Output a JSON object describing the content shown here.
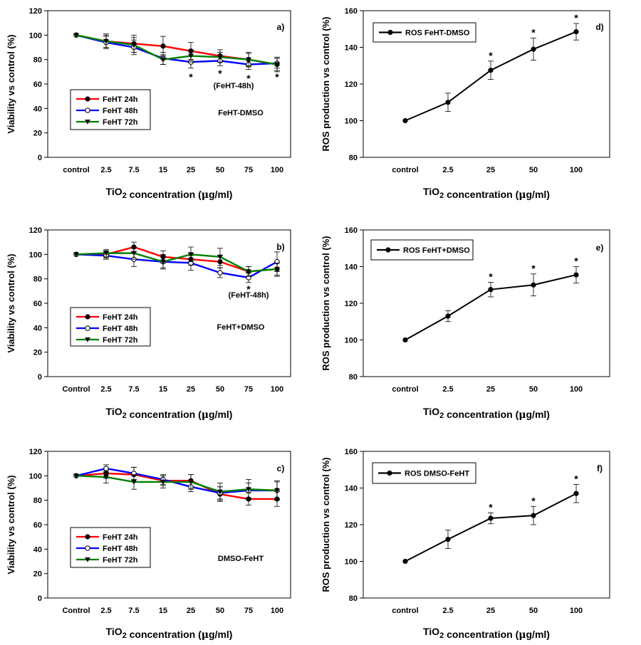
{
  "chart_data": [
    {
      "panel": "a)",
      "type": "line",
      "ylabel": "Viability vs control (%)",
      "xlabel": "TiO2 concentration (μg/ml)",
      "ylim": [
        0,
        120
      ],
      "yticks": [
        0,
        20,
        40,
        60,
        80,
        100,
        120
      ],
      "categories": [
        "control",
        "2.5",
        "7.5",
        "15",
        "25",
        "50",
        "75",
        "100"
      ],
      "annotation": "FeHT-DMSO",
      "note": "(FeHT-48h)",
      "series": [
        {
          "name": "FeHT 24h",
          "color": "#ff0000",
          "marker": "filled-circle",
          "values": [
            100,
            95,
            93,
            91,
            87,
            83,
            80,
            76
          ],
          "errors": [
            0,
            6,
            7,
            8,
            7,
            5,
            6,
            6
          ]
        },
        {
          "name": "FeHT 48h",
          "color": "#0000ff",
          "marker": "open-circle",
          "values": [
            100,
            94,
            90,
            81,
            78,
            79,
            76,
            77
          ],
          "errors": [
            0,
            5,
            6,
            5,
            5,
            4,
            4,
            4
          ]
        },
        {
          "name": "FeHT 72h",
          "color": "#008000",
          "marker": "down-triangle",
          "values": [
            100,
            95,
            92,
            80,
            83,
            82,
            80,
            76
          ],
          "errors": [
            0,
            5,
            6,
            4,
            5,
            4,
            5,
            5
          ]
        }
      ],
      "stars": [
        {
          "category": "25",
          "value": 78
        },
        {
          "category": "50",
          "value": 79
        },
        {
          "category": "75",
          "value": 76
        },
        {
          "category": "100",
          "value": 77
        }
      ]
    },
    {
      "panel": "b)",
      "type": "line",
      "ylabel": "Viability vs control (%)",
      "xlabel": "TiO2 concentration (μg/ml)",
      "ylim": [
        0,
        120
      ],
      "yticks": [
        0,
        20,
        40,
        60,
        80,
        100,
        120
      ],
      "categories": [
        "Control",
        "2.5",
        "7.5",
        "15",
        "25",
        "50",
        "75",
        "100"
      ],
      "annotation": "FeHT+DMSO",
      "note": "(FeHT-48h)",
      "series": [
        {
          "name": "FeHT 24h",
          "color": "#ff0000",
          "marker": "filled-circle",
          "values": [
            100,
            100,
            106,
            98,
            96,
            94,
            86,
            88
          ],
          "errors": [
            0,
            3,
            4,
            5,
            5,
            5,
            4,
            6
          ]
        },
        {
          "name": "FeHT 48h",
          "color": "#0000ff",
          "marker": "open-circle",
          "values": [
            100,
            99,
            96,
            94,
            93,
            85,
            81,
            94
          ],
          "errors": [
            0,
            3,
            6,
            5,
            6,
            4,
            4,
            8
          ]
        },
        {
          "name": "FeHT 72h",
          "color": "#008000",
          "marker": "down-triangle",
          "values": [
            100,
            101,
            101,
            94,
            100,
            98,
            86,
            88
          ],
          "errors": [
            0,
            3,
            5,
            6,
            6,
            7,
            4,
            5
          ]
        }
      ],
      "stars": [
        {
          "category": "75",
          "value": 81
        }
      ]
    },
    {
      "panel": "c)",
      "type": "line",
      "ylabel": "Viability vs control (%)",
      "xlabel": "TiO2 concentration (μg/ml)",
      "ylim": [
        0,
        120
      ],
      "yticks": [
        0,
        20,
        40,
        60,
        80,
        100,
        120
      ],
      "categories": [
        "Control",
        "2.5",
        "7.5",
        "15",
        "25",
        "50",
        "75",
        "100"
      ],
      "annotation": "DMSO-FeHT",
      "series": [
        {
          "name": "FeHT 24h",
          "color": "#ff0000",
          "marker": "filled-circle",
          "values": [
            100,
            102,
            101,
            96,
            96,
            85,
            81,
            81
          ],
          "errors": [
            0,
            4,
            6,
            4,
            5,
            6,
            5,
            6
          ]
        },
        {
          "name": "FeHT 48h",
          "color": "#0000ff",
          "marker": "open-circle",
          "values": [
            100,
            106,
            102,
            97,
            91,
            86,
            88,
            88
          ],
          "errors": [
            0,
            3,
            5,
            4,
            4,
            5,
            6,
            7
          ]
        },
        {
          "name": "FeHT 72h",
          "color": "#008000",
          "marker": "down-triangle",
          "values": [
            100,
            99,
            95,
            95,
            95,
            87,
            89,
            88
          ],
          "errors": [
            0,
            5,
            6,
            5,
            6,
            7,
            8,
            8
          ]
        }
      ]
    },
    {
      "panel": "d)",
      "type": "line",
      "ylabel": "ROS production vs control (%)",
      "xlabel": "TiO2 concentration (μg/ml)",
      "ylim": [
        80,
        160
      ],
      "yticks": [
        80,
        100,
        120,
        140,
        160
      ],
      "categories": [
        "control",
        "2.5",
        "25",
        "50",
        "100"
      ],
      "series": [
        {
          "name": "ROS FeHT-DMSO",
          "color": "#000000",
          "marker": "filled-circle",
          "values": [
            100,
            110,
            127.5,
            139,
            148.5
          ],
          "errors": [
            0,
            5,
            5,
            6,
            4.5
          ]
        }
      ],
      "stars": [
        {
          "category": "25",
          "value": 127.5
        },
        {
          "category": "50",
          "value": 139
        },
        {
          "category": "100",
          "value": 148.5
        }
      ]
    },
    {
      "panel": "e)",
      "type": "line",
      "ylabel": "ROS production vs control (%)",
      "xlabel": "TiO2 concentration (μg/ml)",
      "ylim": [
        80,
        160
      ],
      "yticks": [
        80,
        100,
        120,
        140,
        160
      ],
      "categories": [
        "control",
        "2.5",
        "25",
        "50",
        "100"
      ],
      "series": [
        {
          "name": "ROS FeHT+DMSO",
          "color": "#000000",
          "marker": "filled-circle",
          "values": [
            100,
            113,
            127.5,
            130,
            135.5
          ],
          "errors": [
            0,
            3,
            4,
            6,
            4.5
          ]
        }
      ],
      "stars": [
        {
          "category": "25",
          "value": 127.5
        },
        {
          "category": "50",
          "value": 130
        },
        {
          "category": "100",
          "value": 135.5
        }
      ]
    },
    {
      "panel": "f)",
      "type": "line",
      "ylabel": "ROS production vs control (%)",
      "xlabel": "TiO2 concentration (μg/ml)",
      "ylim": [
        80,
        160
      ],
      "yticks": [
        80,
        100,
        120,
        140,
        160
      ],
      "categories": [
        "control",
        "2.5",
        "25",
        "50",
        "100"
      ],
      "series": [
        {
          "name": "ROS DMSO-FeHT",
          "color": "#000000",
          "marker": "filled-circle",
          "values": [
            100,
            112,
            123.5,
            125,
            137
          ],
          "errors": [
            0,
            5,
            3,
            5,
            5
          ]
        }
      ],
      "stars": [
        {
          "category": "25",
          "value": 123.5
        },
        {
          "category": "50",
          "value": 125
        },
        {
          "category": "100",
          "value": 137
        }
      ]
    }
  ]
}
